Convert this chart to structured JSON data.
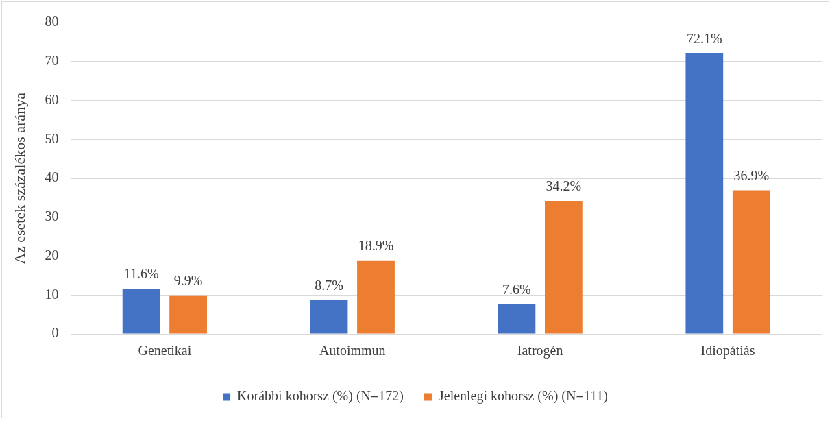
{
  "chart_data": {
    "type": "bar",
    "ylabel": "Az esetek százalékos aránya",
    "categories": [
      "Genetikai",
      "Autoimmun",
      "Iatrogén",
      "Idiopátiás"
    ],
    "series": [
      {
        "name": "Korábbi kohorsz (%) (N=172)",
        "color": "#4472c4",
        "values": [
          11.6,
          8.7,
          7.6,
          72.1
        ],
        "value_labels": [
          "11.6%",
          "8.7%",
          "7.6%",
          "72.1%"
        ]
      },
      {
        "name": "Jelenlegi kohorsz (%) (N=111)",
        "color": "#ed7d31",
        "values": [
          9.9,
          18.9,
          34.2,
          36.9
        ],
        "value_labels": [
          "9.9%",
          "18.9%",
          "34.2%",
          "36.9%"
        ]
      }
    ],
    "ylim": [
      0,
      80
    ],
    "yticks": [
      0,
      10,
      20,
      30,
      40,
      50,
      60,
      70,
      80
    ],
    "grid": "y",
    "legend": "bottom"
  }
}
